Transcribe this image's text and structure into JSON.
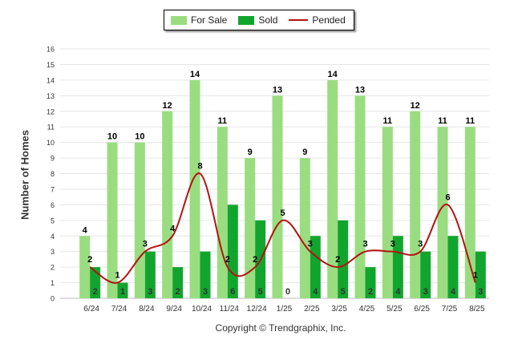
{
  "chart_data": {
    "type": "bar",
    "categories": [
      "6/24",
      "7/24",
      "8/24",
      "9/24",
      "10/24",
      "11/24",
      "12/24",
      "1/25",
      "2/25",
      "3/25",
      "4/25",
      "5/25",
      "6/25",
      "7/25",
      "8/25"
    ],
    "series": [
      {
        "name": "For Sale",
        "type": "bar",
        "color": "#99dd80",
        "values": [
          4,
          10,
          10,
          12,
          14,
          11,
          9,
          13,
          9,
          14,
          13,
          11,
          12,
          11,
          11
        ]
      },
      {
        "name": "Sold",
        "type": "bar",
        "color": "#12a52e",
        "values": [
          2,
          1,
          3,
          2,
          3,
          6,
          5,
          0,
          4,
          5,
          2,
          4,
          3,
          4,
          3
        ]
      },
      {
        "name": "Pended",
        "type": "line",
        "color": "#b31212",
        "values": [
          2,
          1,
          3,
          4,
          8,
          2,
          2,
          5,
          3,
          2,
          3,
          3,
          3,
          6,
          1
        ]
      }
    ],
    "ylabel": "Number of Homes",
    "ylim": [
      0,
      16
    ],
    "yticks": [
      0,
      1,
      2,
      3,
      4,
      5,
      6,
      7,
      8,
      9,
      10,
      11,
      12,
      13,
      14,
      15,
      16
    ],
    "grid": true,
    "legend_position": "top-center"
  },
  "credit": "Copyright © Trendgraphix, Inc."
}
